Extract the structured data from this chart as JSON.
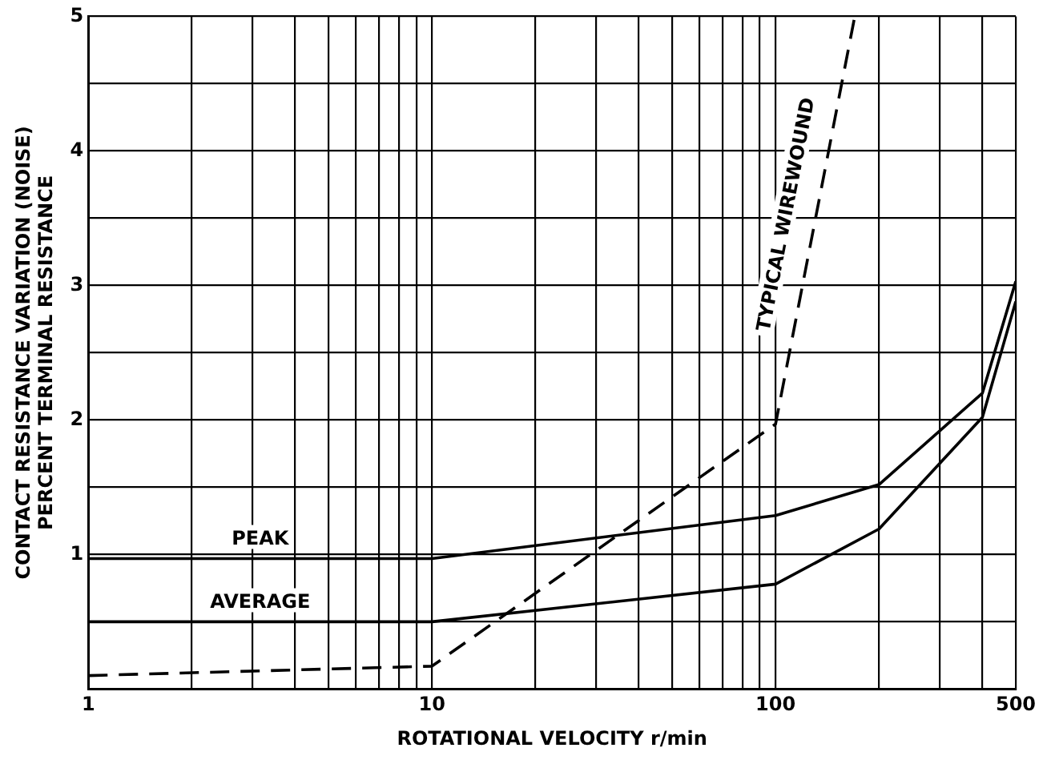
{
  "chart_data": {
    "type": "line",
    "xlabel": "ROTATIONAL VELOCITY r/min",
    "ylabel": "CONTACT RESISTANCE VARIATION (NOISE)\nPERCENT TERMINAL RESISTANCE",
    "log": "x",
    "xlim": [
      1,
      500
    ],
    "ylim": [
      0,
      5
    ],
    "xticks": [
      1,
      {
        "value": 2,
        "label": null
      },
      {
        "value": 3,
        "label": null
      },
      {
        "value": 4,
        "label": null
      },
      {
        "value": 5,
        "label": null
      },
      {
        "value": 6,
        "label": null
      },
      {
        "value": 7,
        "label": null
      },
      {
        "value": 8,
        "label": null
      },
      {
        "value": 9,
        "label": null
      },
      10,
      {
        "value": 20,
        "label": null
      },
      {
        "value": 30,
        "label": null
      },
      {
        "value": 40,
        "label": null
      },
      {
        "value": 50,
        "label": null
      },
      {
        "value": 60,
        "label": null
      },
      {
        "value": 70,
        "label": null
      },
      {
        "value": 80,
        "label": null
      },
      {
        "value": 90,
        "label": null
      },
      100,
      {
        "value": 200,
        "label": null
      },
      {
        "value": 300,
        "label": null
      },
      {
        "value": 400,
        "label": null
      },
      500
    ],
    "yticks": [
      {
        "value": 0,
        "label": null
      },
      {
        "value": 0.5,
        "label": null
      },
      1,
      {
        "value": 1.5,
        "label": null
      },
      2,
      {
        "value": 2.5,
        "label": null
      },
      3,
      {
        "value": 3.5,
        "label": null
      },
      4,
      {
        "value": 4.5,
        "label": null
      },
      5
    ],
    "grid": true,
    "legend": false,
    "marker": "none",
    "series": [
      {
        "name": "PEAK",
        "color": "#000000",
        "line_style": "solid",
        "x": [
          1,
          10,
          100,
          200,
          400,
          500
        ],
        "values": [
          0.97,
          0.97,
          1.29,
          1.52,
          2.2,
          3.03
        ]
      },
      {
        "name": "AVERAGE",
        "color": "#000000",
        "line_style": "solid",
        "x": [
          1,
          10,
          100,
          200,
          400,
          500
        ],
        "values": [
          0.5,
          0.5,
          0.78,
          1.19,
          2.02,
          2.88
        ]
      },
      {
        "name": "TYPICAL WIREWOUND",
        "color": "#000000",
        "line_style": "dashed",
        "x": [
          1,
          10,
          100,
          170
        ],
        "values": [
          0.1,
          0.17,
          1.97,
          5
        ]
      }
    ]
  }
}
